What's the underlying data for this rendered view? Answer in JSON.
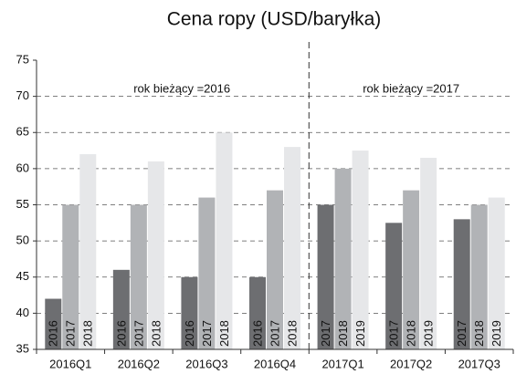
{
  "chart_data": {
    "type": "bar",
    "title": "Cena ropy (USD/baryłka)",
    "categories": [
      "2016Q1",
      "2016Q2",
      "2016Q3",
      "2016Q4",
      "2017Q1",
      "2017Q2",
      "2017Q3"
    ],
    "series": [
      {
        "color": "#6d6e71",
        "values": [
          42,
          46,
          45,
          45,
          55,
          52.5,
          53
        ],
        "labels": [
          "2016",
          "2016",
          "2016",
          "2016",
          "2017",
          "2017",
          "2017"
        ]
      },
      {
        "color": "#b1b3b6",
        "values": [
          55,
          55,
          56,
          57,
          60,
          57,
          55
        ],
        "labels": [
          "2017",
          "2017",
          "2017",
          "2017",
          "2018",
          "2018",
          "2018"
        ]
      },
      {
        "color": "#e6e7e9",
        "values": [
          62,
          61,
          65,
          63,
          62.5,
          61.5,
          56
        ],
        "labels": [
          "2018",
          "2018",
          "2018",
          "2018",
          "2019",
          "2019",
          "2019"
        ]
      }
    ],
    "annotations": [
      "rok bieżący =2016",
      "rok bieżący =2017"
    ],
    "ylim": [
      35,
      75
    ],
    "yticks": [
      35,
      40,
      45,
      50,
      55,
      60,
      65,
      70,
      75
    ],
    "grid": true
  }
}
